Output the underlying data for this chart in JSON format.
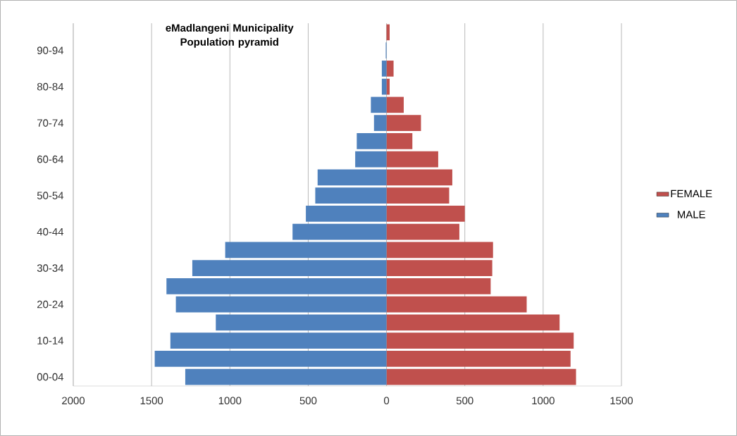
{
  "chart_data": {
    "type": "bar",
    "orientation": "horizontal",
    "stacked": true,
    "title": "eMadlangeni Municipality Population pyramid",
    "categories": [
      null,
      "90-94",
      null,
      "80-84",
      null,
      "70-74",
      null,
      "60-64",
      null,
      "50-54",
      null,
      "40-44",
      null,
      "30-34",
      null,
      "20-24",
      null,
      "10-14",
      null,
      "00-04"
    ],
    "series": [
      {
        "name": "FEMALE",
        "color": "#c0504d",
        "values": [
          20,
          null,
          45,
          20,
          110,
          220,
          165,
          330,
          420,
          400,
          500,
          465,
          680,
          675,
          665,
          895,
          1105,
          1195,
          1175,
          1210
        ]
      },
      {
        "name": "MALE",
        "color": "#4f81bd",
        "values": [
          null,
          -5,
          -30,
          -30,
          -100,
          -80,
          -190,
          -200,
          -440,
          -455,
          -515,
          -600,
          -1030,
          -1240,
          -1405,
          -1345,
          -1090,
          -1380,
          -1480,
          -1285
        ]
      }
    ],
    "xlim": [
      -2000,
      1500
    ],
    "xticks": [
      {
        "value": -2000,
        "label": "2000"
      },
      {
        "value": -1500,
        "label": "1500"
      },
      {
        "value": -1000,
        "label": "1000"
      },
      {
        "value": -500,
        "label": "500"
      },
      0,
      500,
      1000,
      1500
    ],
    "grid": "x",
    "legend": "right"
  }
}
